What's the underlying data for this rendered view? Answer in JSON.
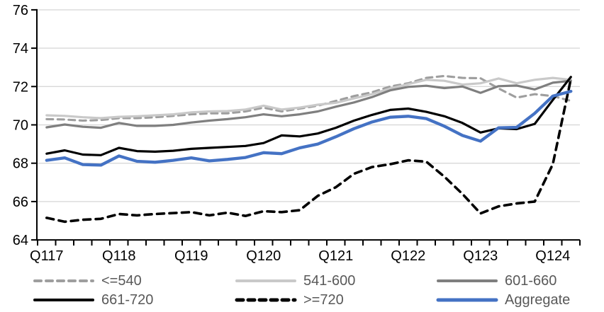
{
  "page": {
    "background": "#FFFFFF"
  },
  "chart_data": {
    "type": "line",
    "title": "",
    "xlabel": "",
    "ylabel": "",
    "ylim": [
      64,
      76
    ],
    "y_ticks": [
      64,
      66,
      68,
      70,
      72,
      74,
      76
    ],
    "grid": true,
    "legend_position": "bottom",
    "colors": {
      "grid": "#D9D9D9",
      "axis": "#000000",
      "legend_text": "#595959",
      "accent_blue": "#4472C4"
    },
    "x": [
      "Q117",
      "Q217",
      "Q317",
      "Q417",
      "Q118",
      "Q218",
      "Q318",
      "Q418",
      "Q119",
      "Q219",
      "Q319",
      "Q419",
      "Q120",
      "Q220",
      "Q320",
      "Q420",
      "Q121",
      "Q221",
      "Q321",
      "Q421",
      "Q122",
      "Q222",
      "Q322",
      "Q422",
      "Q123",
      "Q223",
      "Q323",
      "Q423",
      "Q124",
      "Q224"
    ],
    "x_tick_labels": [
      "Q117",
      "Q118",
      "Q119",
      "Q120",
      "Q121",
      "Q122",
      "Q123",
      "Q124"
    ],
    "x_tick_label_every": 4,
    "series": [
      {
        "name": "<=540",
        "color": "#9E9E9E",
        "style": "dashed",
        "width": 3.1,
        "dash": "9 6.5",
        "values": [
          70.3,
          70.28,
          70.22,
          70.25,
          70.35,
          70.35,
          70.4,
          70.47,
          70.55,
          70.6,
          70.6,
          70.7,
          70.9,
          70.7,
          70.85,
          71.0,
          71.25,
          71.5,
          71.7,
          72.0,
          72.17,
          72.45,
          72.55,
          72.45,
          72.43,
          71.9,
          71.42,
          71.6,
          71.5,
          71.25
        ]
      },
      {
        "name": "541-600",
        "color": "#C9C9C9",
        "style": "solid",
        "width": 3.2,
        "dash": "",
        "values": [
          70.5,
          70.47,
          70.4,
          70.35,
          70.42,
          70.45,
          70.5,
          70.55,
          70.65,
          70.7,
          70.72,
          70.8,
          71.0,
          70.8,
          70.9,
          71.05,
          71.15,
          71.38,
          71.6,
          71.9,
          72.12,
          72.35,
          72.3,
          72.1,
          72.17,
          72.42,
          72.17,
          72.35,
          72.45,
          72.35
        ]
      },
      {
        "name": "601-660",
        "color": "#7F7F7F",
        "style": "solid",
        "width": 3.2,
        "dash": "",
        "values": [
          69.87,
          70.02,
          69.9,
          69.85,
          70.1,
          69.95,
          69.95,
          70.0,
          70.12,
          70.22,
          70.3,
          70.4,
          70.55,
          70.45,
          70.55,
          70.7,
          70.95,
          71.17,
          71.45,
          71.8,
          71.98,
          72.04,
          71.92,
          72.0,
          71.67,
          72.02,
          72.05,
          71.85,
          72.2,
          72.3
        ]
      },
      {
        "name": "661-720",
        "color": "#000000",
        "style": "solid",
        "width": 3.2,
        "dash": "",
        "values": [
          68.5,
          68.67,
          68.45,
          68.42,
          68.8,
          68.63,
          68.6,
          68.65,
          68.75,
          68.8,
          68.85,
          68.9,
          69.05,
          69.45,
          69.4,
          69.55,
          69.85,
          70.22,
          70.52,
          70.78,
          70.85,
          70.68,
          70.45,
          70.1,
          69.6,
          69.82,
          69.78,
          70.05,
          71.3,
          72.5
        ]
      },
      {
        "name": ">=720",
        "color": "#000000",
        "style": "dashed",
        "width": 3.6,
        "dash": "10 7.5",
        "values": [
          65.15,
          64.95,
          65.05,
          65.1,
          65.35,
          65.28,
          65.35,
          65.4,
          65.45,
          65.28,
          65.42,
          65.25,
          65.5,
          65.45,
          65.55,
          66.3,
          66.75,
          67.45,
          67.8,
          67.95,
          68.15,
          68.08,
          67.3,
          66.4,
          65.38,
          65.75,
          65.9,
          66.0,
          67.95,
          72.4
        ]
      },
      {
        "name": "Aggregate",
        "color": "#4472C4",
        "style": "solid",
        "width": 4.3,
        "dash": "",
        "values": [
          68.15,
          68.28,
          67.93,
          67.9,
          68.38,
          68.1,
          68.05,
          68.15,
          68.28,
          68.12,
          68.2,
          68.3,
          68.55,
          68.5,
          68.8,
          69.0,
          69.38,
          69.8,
          70.15,
          70.4,
          70.45,
          70.33,
          69.93,
          69.45,
          69.15,
          69.85,
          69.87,
          70.6,
          71.5,
          71.75
        ]
      }
    ],
    "legend": {
      "rows": [
        [
          0,
          1,
          2
        ],
        [
          3,
          4,
          5
        ]
      ],
      "labels": [
        "<=540",
        "541-600",
        "601-660",
        "661-720",
        ">=720",
        "Aggregate"
      ]
    }
  }
}
